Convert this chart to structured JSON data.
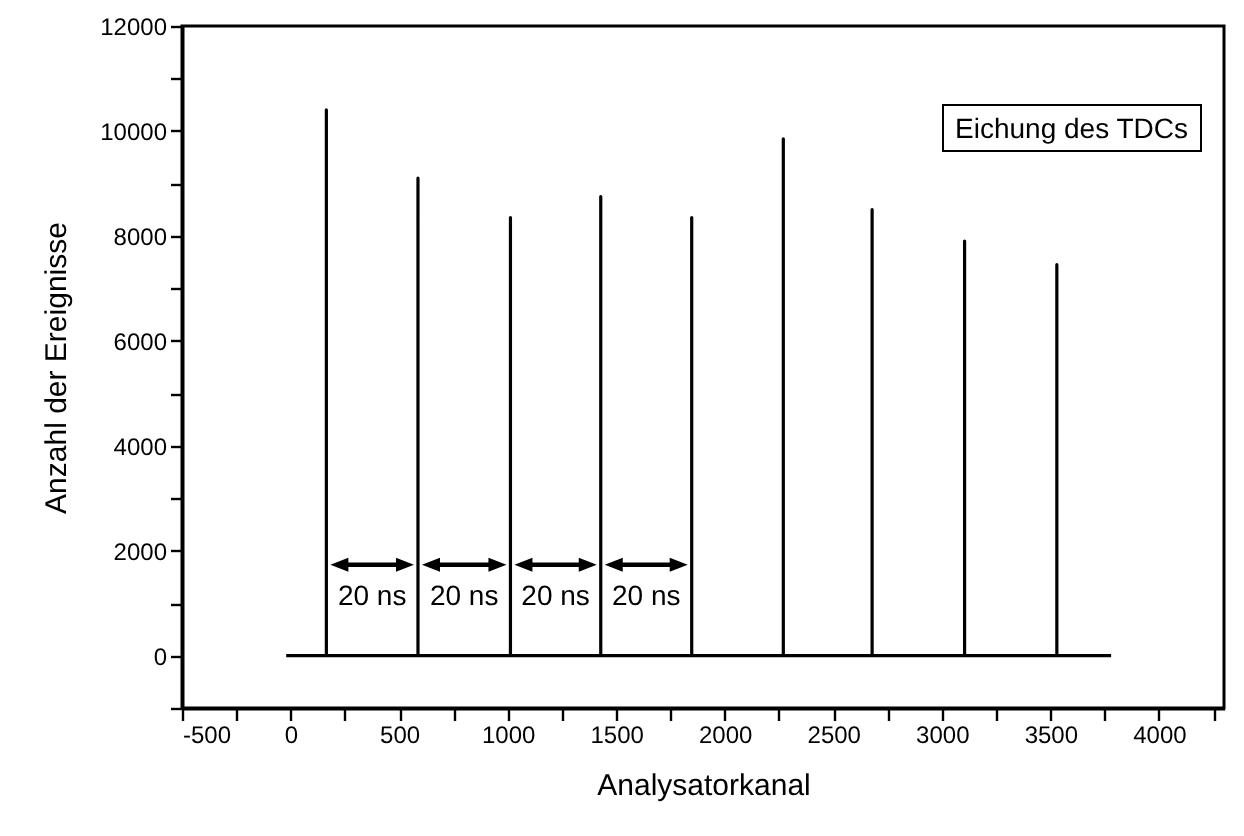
{
  "chart_data": {
    "type": "line",
    "title": "Eichung des TDCs",
    "xlabel": "Analysatorkanal",
    "ylabel": "Anzahl der Ereignisse",
    "series": [
      {
        "color": "#000000",
        "x": [
          -20,
          165,
          165,
          165,
          587,
          587,
          587,
          1013,
          1013,
          1013,
          1429,
          1429,
          1429,
          1848,
          1848,
          1848,
          2270,
          2270,
          2270,
          2679,
          2679,
          2679,
          3105,
          3105,
          3105,
          3530,
          3530,
          3530,
          3780
        ],
        "values": [
          0,
          0,
          10400,
          0,
          0,
          9100,
          0,
          0,
          8350,
          0,
          0,
          8750,
          0,
          0,
          8350,
          0,
          0,
          9850,
          0,
          0,
          8500,
          0,
          0,
          7900,
          0,
          0,
          7450,
          0,
          0
        ]
      }
    ],
    "xlim": [
      -500,
      4300
    ],
    "xticks": [
      -500,
      {
        "value": -250,
        "label": null
      },
      0,
      {
        "value": 250,
        "label": null
      },
      500,
      {
        "value": 750,
        "label": null
      },
      1000,
      {
        "value": 1250,
        "label": null
      },
      1500,
      {
        "value": 1750,
        "label": null
      },
      2000,
      {
        "value": 2250,
        "label": null
      },
      2500,
      {
        "value": 2750,
        "label": null
      },
      3000,
      {
        "value": 3250,
        "label": null
      },
      3500,
      {
        "value": 3750,
        "label": null
      },
      4000,
      {
        "value": 4250,
        "label": null
      }
    ],
    "ylim": [
      -1000,
      12000
    ],
    "yticks": [
      {
        "value": -1000,
        "label": null
      },
      0,
      {
        "value": 1000,
        "label": null
      },
      2000,
      {
        "value": 3000,
        "label": null
      },
      4000,
      {
        "value": 5000,
        "label": null
      },
      6000,
      {
        "value": 7000,
        "label": null
      },
      8000,
      {
        "value": 9000,
        "label": null
      },
      10000,
      {
        "value": 11000,
        "label": null
      },
      12000
    ],
    "annotations": [
      "20 ns",
      "20 ns",
      "20 ns",
      "20 ns"
    ],
    "grid": false
  }
}
